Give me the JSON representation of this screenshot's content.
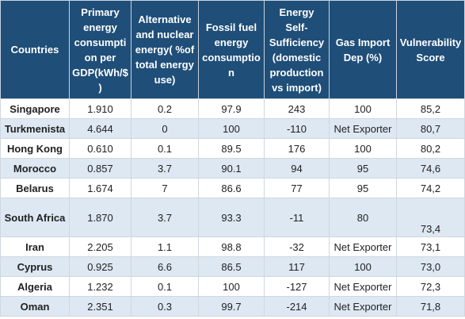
{
  "table": {
    "header": [
      "Countries",
      "Primary energy consumption per GDP(kWh/$)",
      "Alternative and nuclear energy( %of total energy use)",
      "Fossil fuel energy consumption",
      "Energy Self-Sufficiency (domestic production vs import)",
      "Gas Import Dep (%)",
      "Vulnerability Score"
    ],
    "rows": [
      [
        "Singapore",
        "1.910",
        "0.2",
        "97.9",
        "243",
        "100",
        "85,2"
      ],
      [
        "Turkmenista",
        "4.644",
        "0",
        "100",
        "-110",
        "Net Exporter",
        "80,7"
      ],
      [
        "Hong Kong",
        "0.610",
        "0.1",
        "89.5",
        "176",
        "100",
        "80,2"
      ],
      [
        "Morocco",
        "0.857",
        "3.7",
        "90.1",
        "94",
        "95",
        "74,6"
      ],
      [
        "Belarus",
        "1.674",
        "7",
        "86.6",
        "77",
        "95",
        "74,2"
      ],
      [
        "South Africa",
        "1.870",
        "3.7",
        "93.3",
        "-11",
        "80",
        "73,4"
      ],
      [
        "Iran",
        "2.205",
        "1.1",
        "98.8",
        "-32",
        "Net Exporter",
        "73,1"
      ],
      [
        "Cyprus",
        "0.925",
        "6.6",
        "86.5",
        "117",
        "100",
        "73,0"
      ],
      [
        "Algeria",
        "1.232",
        "0.1",
        "100",
        "-127",
        "Net Exporter",
        "72,3"
      ],
      [
        "Oman",
        "2.351",
        "0.3",
        "99.7",
        "-214",
        "Net Exporter",
        "71,8"
      ]
    ]
  }
}
